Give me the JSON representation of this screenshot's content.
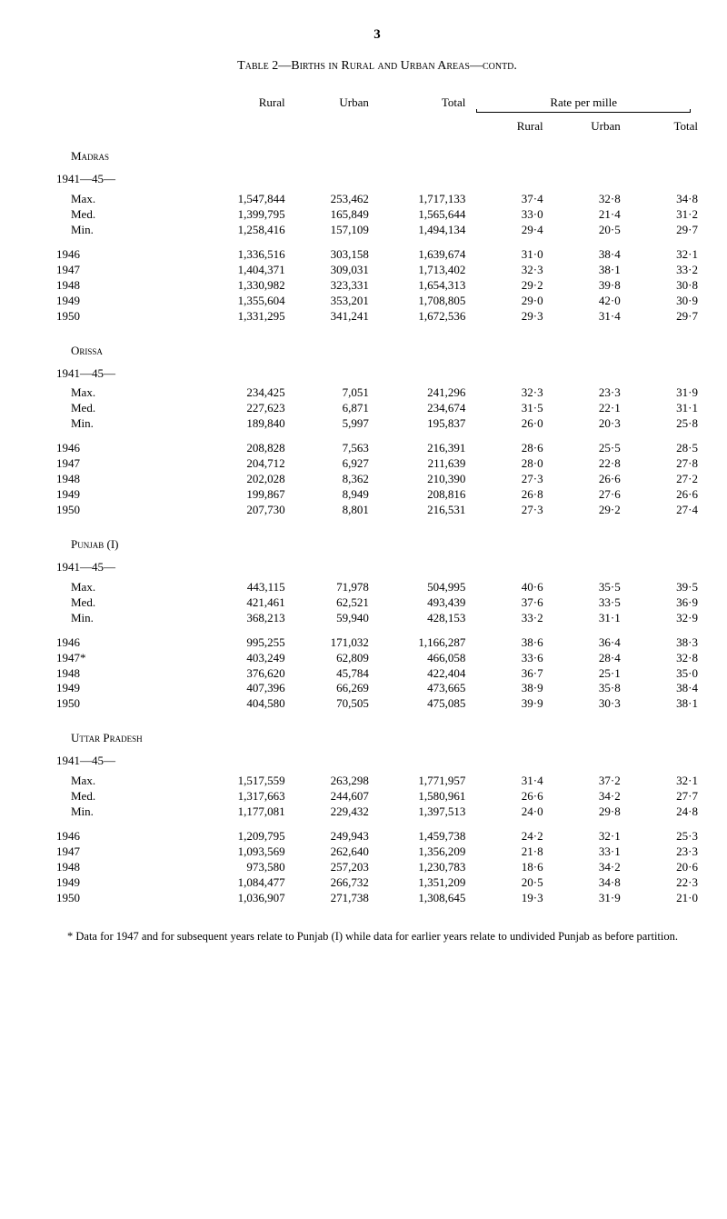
{
  "page_number": "3",
  "title": "Table 2—Births in Rural and Urban Areas—contd.",
  "columns": {
    "rural": "Rural",
    "urban": "Urban",
    "total": "Total",
    "rate_mille": "Rate per mille",
    "rate_rural": "Rural",
    "rate_urban": "Urban",
    "rate_total": "Total"
  },
  "blocks": [
    {
      "region": "Madras",
      "period": "1941—45—",
      "rows_a": [
        {
          "label": "Max.",
          "rural": "1,547,844",
          "urban": "253,462",
          "total": "1,717,133",
          "r1": "37·4",
          "r2": "32·8",
          "r3": "34·8"
        },
        {
          "label": "Med.",
          "rural": "1,399,795",
          "urban": "165,849",
          "total": "1,565,644",
          "r1": "33·0",
          "r2": "21·4",
          "r3": "31·2"
        },
        {
          "label": "Min.",
          "rural": "1,258,416",
          "urban": "157,109",
          "total": "1,494,134",
          "r1": "29·4",
          "r2": "20·5",
          "r3": "29·7"
        }
      ],
      "rows_b": [
        {
          "label": "1946",
          "rural": "1,336,516",
          "urban": "303,158",
          "total": "1,639,674",
          "r1": "31·0",
          "r2": "38·4",
          "r3": "32·1"
        },
        {
          "label": "1947",
          "rural": "1,404,371",
          "urban": "309,031",
          "total": "1,713,402",
          "r1": "32·3",
          "r2": "38·1",
          "r3": "33·2"
        },
        {
          "label": "1948",
          "rural": "1,330,982",
          "urban": "323,331",
          "total": "1,654,313",
          "r1": "29·2",
          "r2": "39·8",
          "r3": "30·8"
        },
        {
          "label": "1949",
          "rural": "1,355,604",
          "urban": "353,201",
          "total": "1,708,805",
          "r1": "29·0",
          "r2": "42·0",
          "r3": "30·9"
        },
        {
          "label": "1950",
          "rural": "1,331,295",
          "urban": "341,241",
          "total": "1,672,536",
          "r1": "29·3",
          "r2": "31·4",
          "r3": "29·7"
        }
      ]
    },
    {
      "region": "Orissa",
      "period": "1941—45—",
      "rows_a": [
        {
          "label": "Max.",
          "rural": "234,425",
          "urban": "7,051",
          "total": "241,296",
          "r1": "32·3",
          "r2": "23·3",
          "r3": "31·9"
        },
        {
          "label": "Med.",
          "rural": "227,623",
          "urban": "6,871",
          "total": "234,674",
          "r1": "31·5",
          "r2": "22·1",
          "r3": "31·1"
        },
        {
          "label": "Min.",
          "rural": "189,840",
          "urban": "5,997",
          "total": "195,837",
          "r1": "26·0",
          "r2": "20·3",
          "r3": "25·8"
        }
      ],
      "rows_b": [
        {
          "label": "1946",
          "rural": "208,828",
          "urban": "7,563",
          "total": "216,391",
          "r1": "28·6",
          "r2": "25·5",
          "r3": "28·5"
        },
        {
          "label": "1947",
          "rural": "204,712",
          "urban": "6,927",
          "total": "211,639",
          "r1": "28·0",
          "r2": "22·8",
          "r3": "27·8"
        },
        {
          "label": "1948",
          "rural": "202,028",
          "urban": "8,362",
          "total": "210,390",
          "r1": "27·3",
          "r2": "26·6",
          "r3": "27·2"
        },
        {
          "label": "1949",
          "rural": "199,867",
          "urban": "8,949",
          "total": "208,816",
          "r1": "26·8",
          "r2": "27·6",
          "r3": "26·6"
        },
        {
          "label": "1950",
          "rural": "207,730",
          "urban": "8,801",
          "total": "216,531",
          "r1": "27·3",
          "r2": "29·2",
          "r3": "27·4"
        }
      ]
    },
    {
      "region": "Punjab (I)",
      "period": "1941—45—",
      "rows_a": [
        {
          "label": "Max.",
          "rural": "443,115",
          "urban": "71,978",
          "total": "504,995",
          "r1": "40·6",
          "r2": "35·5",
          "r3": "39·5"
        },
        {
          "label": "Med.",
          "rural": "421,461",
          "urban": "62,521",
          "total": "493,439",
          "r1": "37·6",
          "r2": "33·5",
          "r3": "36·9"
        },
        {
          "label": "Min.",
          "rural": "368,213",
          "urban": "59,940",
          "total": "428,153",
          "r1": "33·2",
          "r2": "31·1",
          "r3": "32·9"
        }
      ],
      "rows_b": [
        {
          "label": "1946",
          "rural": "995,255",
          "urban": "171,032",
          "total": "1,166,287",
          "r1": "38·6",
          "r2": "36·4",
          "r3": "38·3"
        },
        {
          "label": "1947*",
          "rural": "403,249",
          "urban": "62,809",
          "total": "466,058",
          "r1": "33·6",
          "r2": "28·4",
          "r3": "32·8"
        },
        {
          "label": "1948",
          "rural": "376,620",
          "urban": "45,784",
          "total": "422,404",
          "r1": "36·7",
          "r2": "25·1",
          "r3": "35·0"
        },
        {
          "label": "1949",
          "rural": "407,396",
          "urban": "66,269",
          "total": "473,665",
          "r1": "38·9",
          "r2": "35·8",
          "r3": "38·4"
        },
        {
          "label": "1950",
          "rural": "404,580",
          "urban": "70,505",
          "total": "475,085",
          "r1": "39·9",
          "r2": "30·3",
          "r3": "38·1"
        }
      ]
    },
    {
      "region": "Uttar Pradesh",
      "period": "1941—45—",
      "rows_a": [
        {
          "label": "Max.",
          "rural": "1,517,559",
          "urban": "263,298",
          "total": "1,771,957",
          "r1": "31·4",
          "r2": "37·2",
          "r3": "32·1"
        },
        {
          "label": "Med.",
          "rural": "1,317,663",
          "urban": "244,607",
          "total": "1,580,961",
          "r1": "26·6",
          "r2": "34·2",
          "r3": "27·7"
        },
        {
          "label": "Min.",
          "rural": "1,177,081",
          "urban": "229,432",
          "total": "1,397,513",
          "r1": "24·0",
          "r2": "29·8",
          "r3": "24·8"
        }
      ],
      "rows_b": [
        {
          "label": "1946",
          "rural": "1,209,795",
          "urban": "249,943",
          "total": "1,459,738",
          "r1": "24·2",
          "r2": "32·1",
          "r3": "25·3"
        },
        {
          "label": "1947",
          "rural": "1,093,569",
          "urban": "262,640",
          "total": "1,356,209",
          "r1": "21·8",
          "r2": "33·1",
          "r3": "23·3"
        },
        {
          "label": "1948",
          "rural": "973,580",
          "urban": "257,203",
          "total": "1,230,783",
          "r1": "18·6",
          "r2": "34·2",
          "r3": "20·6"
        },
        {
          "label": "1949",
          "rural": "1,084,477",
          "urban": "266,732",
          "total": "1,351,209",
          "r1": "20·5",
          "r2": "34·8",
          "r3": "22·3"
        },
        {
          "label": "1950",
          "rural": "1,036,907",
          "urban": "271,738",
          "total": "1,308,645",
          "r1": "19·3",
          "r2": "31·9",
          "r3": "21·0"
        }
      ]
    }
  ],
  "footnote": "* Data for 1947 and for subsequent years relate to Punjab (I) while data for earlier years relate to undivided Punjab as before partition."
}
